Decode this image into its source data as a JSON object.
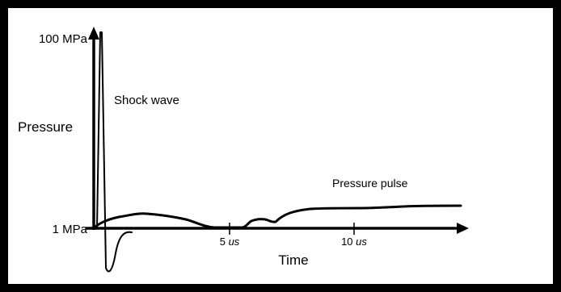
{
  "y_axis": {
    "label": "Pressure",
    "top_tick": "100 MPa",
    "bottom_tick": "1 MPa"
  },
  "x_axis": {
    "label": "Time",
    "tick_5_value": "5",
    "tick_10_value": "10",
    "unit": "us"
  },
  "annotations": {
    "shock_wave": "Shock wave",
    "pressure_pulse": "Pressure pulse"
  }
}
